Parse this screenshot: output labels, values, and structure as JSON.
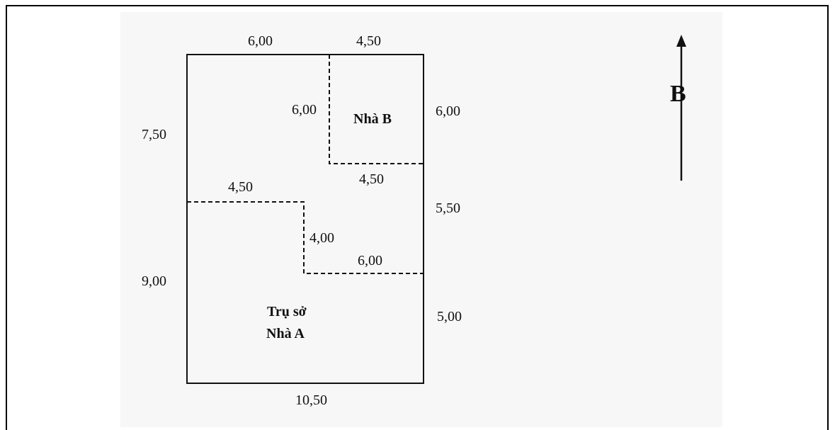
{
  "plan": {
    "dimensions": {
      "top_left": "6,00",
      "top_right": "4,50",
      "left_upper": "7,50",
      "left_lower": "9,00",
      "right_upper": "6,00",
      "right_middle": "5,50",
      "right_lower": "5,00",
      "bottom": "10,50",
      "house_b_width": "4,50",
      "house_b_height": "6,00",
      "step_left_width": "4,50",
      "step_height": "4,00",
      "step_right_width": "6,00"
    },
    "labels": {
      "house_b": "Nhà B",
      "office_line1": "Trụ sở",
      "office_line2": "Nhà A"
    },
    "compass": {
      "letter": "B"
    }
  }
}
